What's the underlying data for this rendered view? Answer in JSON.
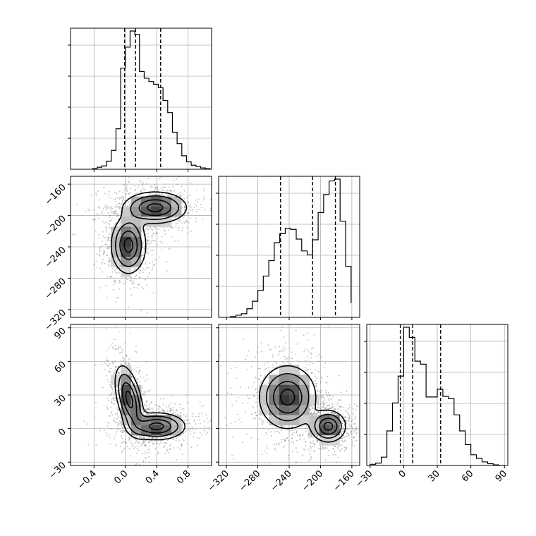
{
  "chart_data": {
    "type": "corner",
    "parameters": [
      {
        "name": "",
        "range": [
          -0.7,
          1.1
        ],
        "ticks": [
          -0.4,
          0.0,
          0.4,
          0.8
        ],
        "tick_labels": [
          "−0.4",
          "0.0",
          "0.4",
          "0.8"
        ],
        "quantiles": [
          -0.01,
          0.13,
          0.45
        ]
      },
      {
        "name": "",
        "range": [
          -330,
          -150
        ],
        "ticks": [
          -320,
          -280,
          -240,
          -200,
          -160
        ],
        "tick_labels": [
          "−320",
          "−280",
          "−240",
          "−200",
          "−160"
        ],
        "quantiles": [
          -251,
          -210,
          -181
        ]
      },
      {
        "name": "",
        "range": [
          -33,
          93
        ],
        "ticks": [
          -30,
          0,
          30,
          60,
          90
        ],
        "tick_labels": [
          "−30",
          "0",
          "30",
          "60",
          "90"
        ],
        "quantiles": [
          -3,
          8,
          33
        ]
      }
    ],
    "histograms": [
      {
        "param": 0,
        "bin_edges": [
          -0.42,
          -0.36,
          -0.3,
          -0.24,
          -0.18,
          -0.12,
          -0.06,
          0.0,
          0.06,
          0.12,
          0.18,
          0.24,
          0.3,
          0.36,
          0.42,
          0.48,
          0.54,
          0.6,
          0.66,
          0.72,
          0.78,
          0.84,
          0.9,
          0.96,
          1.02,
          1.08
        ],
        "counts": [
          1,
          3,
          5,
          12,
          28,
          60,
          150,
          181,
          205,
          200,
          145,
          135,
          130,
          126,
          121,
          102,
          84,
          55,
          38,
          20,
          11,
          6,
          4,
          2,
          1
        ]
      },
      {
        "param": 1,
        "bin_edges": [
          -315,
          -308,
          -301,
          -294,
          -287,
          -280,
          -273,
          -266,
          -259,
          -252,
          -245,
          -238,
          -231,
          -224,
          -217,
          -210,
          -203,
          -196,
          -189,
          -182,
          -175,
          -168,
          -161
        ],
        "counts": [
          2,
          6,
          10,
          24,
          45,
          75,
          115,
          158,
          208,
          233,
          248,
          245,
          218,
          185,
          174,
          216,
          292,
          342,
          380,
          385,
          268,
          142,
          40
        ]
      },
      {
        "param": 2,
        "bin_edges": [
          -30,
          -25,
          -20,
          -15,
          -10,
          -5,
          0,
          5,
          10,
          15,
          20,
          25,
          30,
          35,
          40,
          45,
          50,
          55,
          60,
          65,
          70,
          75,
          80,
          85,
          90
        ],
        "counts": [
          2,
          4,
          14,
          58,
          105,
          150,
          232,
          215,
          175,
          170,
          115,
          115,
          128,
          116,
          112,
          85,
          58,
          35,
          18,
          12,
          6,
          3,
          1,
          0
        ]
      }
    ],
    "pairs": [
      {
        "x": 0,
        "y": 1,
        "modes": [
          {
            "center": [
              0.04,
              -238
            ],
            "spread": [
              0.11,
              18
            ],
            "corr": 0
          },
          {
            "center": [
              0.38,
              -190
            ],
            "spread": [
              0.2,
              10
            ],
            "corr": 0
          }
        ]
      },
      {
        "x": 0,
        "y": 2,
        "modes": [
          {
            "center": [
              0.05,
              26
            ],
            "spread": [
              0.09,
              15
            ],
            "corr": -0.5
          },
          {
            "center": [
              0.4,
              2
            ],
            "spread": [
              0.18,
              6
            ],
            "corr": 0
          }
        ]
      },
      {
        "x": 1,
        "y": 2,
        "modes": [
          {
            "center": [
              -242,
              28
            ],
            "spread": [
              18,
              14
            ],
            "corr": 0
          },
          {
            "center": [
              -190,
              2
            ],
            "spread": [
              11,
              7
            ],
            "corr": 0
          }
        ]
      }
    ],
    "grid": true,
    "contour_levels": [
      0.5,
      1.0,
      1.5,
      2.0
    ]
  }
}
